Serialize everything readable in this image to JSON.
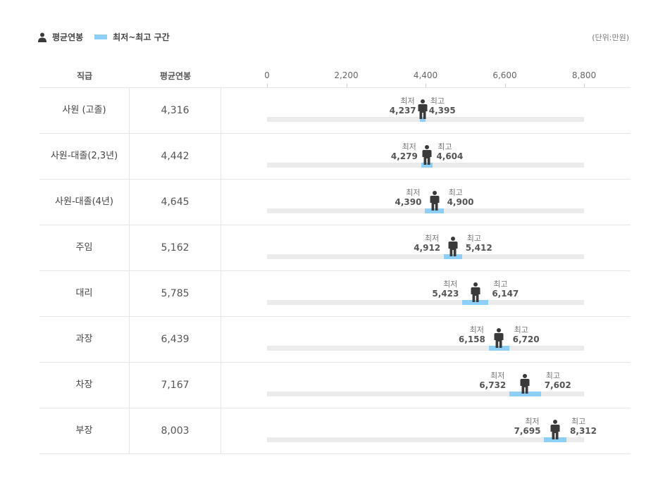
{
  "legend": {
    "avg_label": "평균연봉",
    "range_label": "최저~최고 구간",
    "unit": "(단위:만원)"
  },
  "header": {
    "rank": "직급",
    "avg": "평균연봉"
  },
  "labels": {
    "min_caption": "최저",
    "max_caption": "최고"
  },
  "colors": {
    "band": "#8dcff6",
    "track": "#ebebeb",
    "figure": "#3a3a3a"
  },
  "chart_data": {
    "type": "range",
    "xlim": [
      0,
      8800
    ],
    "ticks": [
      "0",
      "2,200",
      "4,400",
      "6,600",
      "8,800"
    ],
    "tick_values": [
      0,
      2200,
      4400,
      6600,
      8800
    ],
    "rows": [
      {
        "rank": "사원 (고졸)",
        "avg": 4316,
        "avg_label": "4,316",
        "min": 4237,
        "min_label": "4,237",
        "max": 4395,
        "max_label": "4,395"
      },
      {
        "rank": "사원-대졸(2,3년)",
        "avg": 4442,
        "avg_label": "4,442",
        "min": 4279,
        "min_label": "4,279",
        "max": 4604,
        "max_label": "4,604"
      },
      {
        "rank": "사원-대졸(4년)",
        "avg": 4645,
        "avg_label": "4,645",
        "min": 4390,
        "min_label": "4,390",
        "max": 4900,
        "max_label": "4,900"
      },
      {
        "rank": "주임",
        "avg": 5162,
        "avg_label": "5,162",
        "min": 4912,
        "min_label": "4,912",
        "max": 5412,
        "max_label": "5,412"
      },
      {
        "rank": "대리",
        "avg": 5785,
        "avg_label": "5,785",
        "min": 5423,
        "min_label": "5,423",
        "max": 6147,
        "max_label": "6,147"
      },
      {
        "rank": "과장",
        "avg": 6439,
        "avg_label": "6,439",
        "min": 6158,
        "min_label": "6,158",
        "max": 6720,
        "max_label": "6,720"
      },
      {
        "rank": "차장",
        "avg": 7167,
        "avg_label": "7,167",
        "min": 6732,
        "min_label": "6,732",
        "max": 7602,
        "max_label": "7,602"
      },
      {
        "rank": "부장",
        "avg": 8003,
        "avg_label": "8,003",
        "min": 7695,
        "min_label": "7,695",
        "max": 8312,
        "max_label": "8,312"
      }
    ]
  }
}
